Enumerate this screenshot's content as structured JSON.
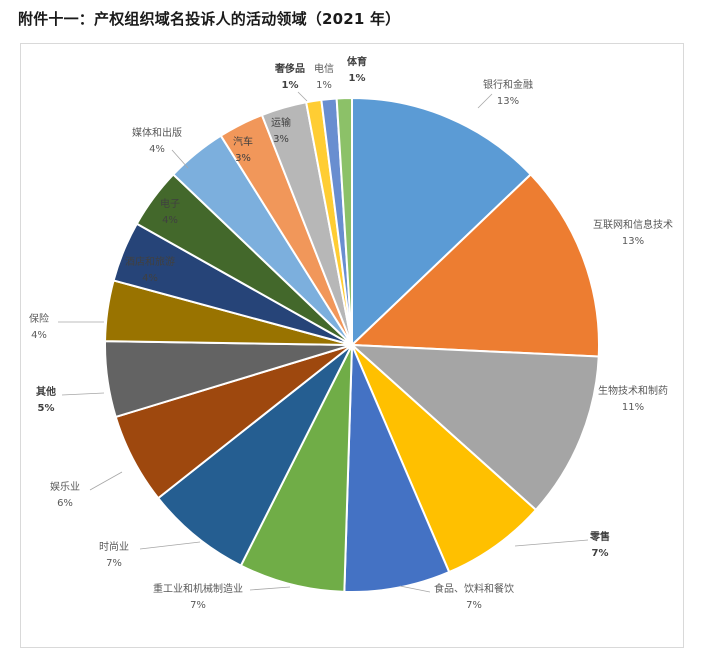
{
  "page": {
    "title": "附件十一：产权组织域名投诉人的活动领域（2021 年）"
  },
  "chart_data": {
    "type": "pie",
    "start_angle_deg": 0,
    "direction": "clockwise",
    "slices": [
      {
        "name": "银行和金融",
        "value": 13,
        "label": "13%",
        "color": "#5B9BD5"
      },
      {
        "name": "互联网和信息技术",
        "value": 13,
        "label": "13%",
        "color": "#ED7D31"
      },
      {
        "name": "生物技术和制药",
        "value": 11,
        "label": "11%",
        "color": "#A5A5A5"
      },
      {
        "name": "零售",
        "value": 7,
        "label": "7%",
        "color": "#FFC000"
      },
      {
        "name": "食品、饮料和餐饮",
        "value": 7,
        "label": "7%",
        "color": "#4472C4"
      },
      {
        "name": "重工业和机械制造业",
        "value": 7,
        "label": "7%",
        "color": "#70AD47"
      },
      {
        "name": "时尚业",
        "value": 7,
        "label": "7%",
        "color": "#255E91"
      },
      {
        "name": "娱乐业",
        "value": 6,
        "label": "6%",
        "color": "#9E480E"
      },
      {
        "name": "其他",
        "value": 5,
        "label": "5%",
        "color": "#636363"
      },
      {
        "name": "保险",
        "value": 4,
        "label": "4%",
        "color": "#997300"
      },
      {
        "name": "酒店和旅游",
        "value": 4,
        "label": "4%",
        "color": "#264478"
      },
      {
        "name": "电子",
        "value": 4,
        "label": "4%",
        "color": "#43682B"
      },
      {
        "name": "媒体和出版",
        "value": 4,
        "label": "4%",
        "color": "#7CAFDD"
      },
      {
        "name": "汽车",
        "value": 3,
        "label": "3%",
        "color": "#F1975A"
      },
      {
        "name": "运输",
        "value": 3,
        "label": "3%",
        "color": "#B7B7B7"
      },
      {
        "name": "奢侈品",
        "value": 1,
        "label": "1%",
        "color": "#FFCD33"
      },
      {
        "name": "电信",
        "value": 1,
        "label": "1%",
        "color": "#698ED0"
      },
      {
        "name": "体育",
        "value": 1,
        "label": "1%",
        "color": "#8CC168"
      }
    ]
  }
}
